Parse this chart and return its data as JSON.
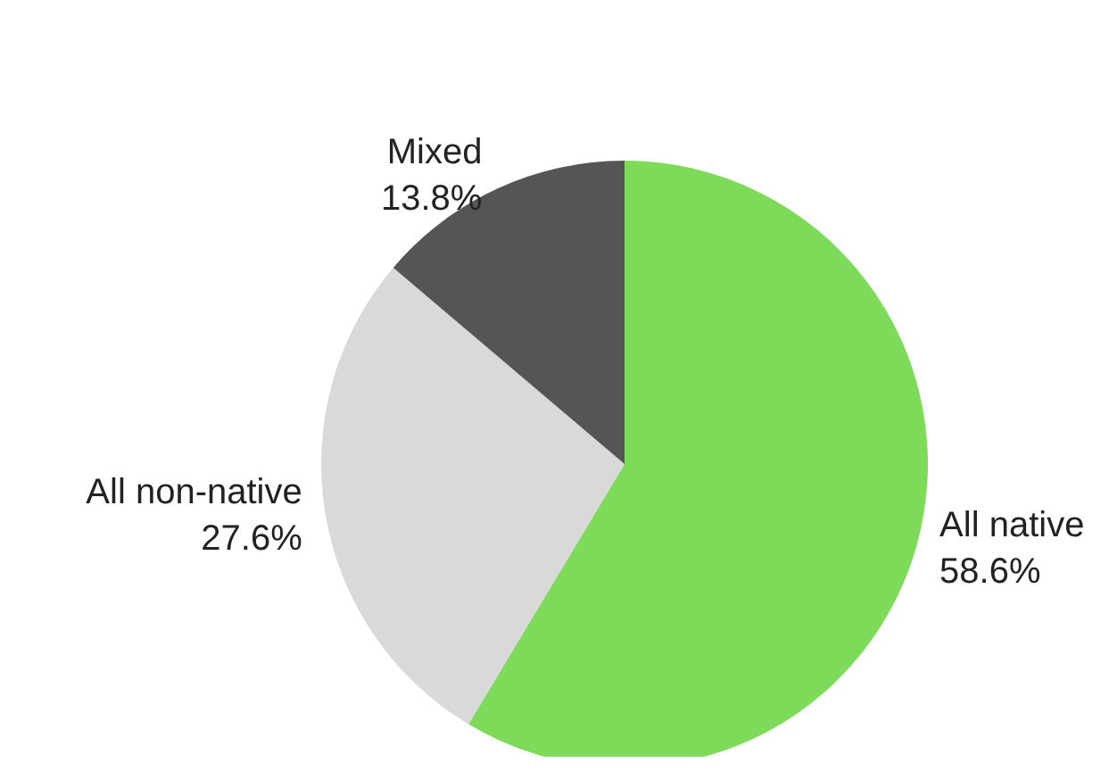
{
  "chart_data": {
    "type": "pie",
    "categories": [
      "All native",
      "All non-native",
      "Mixed"
    ],
    "values": [
      58.6,
      27.6,
      13.8
    ],
    "value_labels": [
      "58.6%",
      "27.6%",
      "13.8%"
    ],
    "colors": [
      "#7edb5a",
      "#d9d9d9",
      "#555555"
    ],
    "legend": false
  }
}
